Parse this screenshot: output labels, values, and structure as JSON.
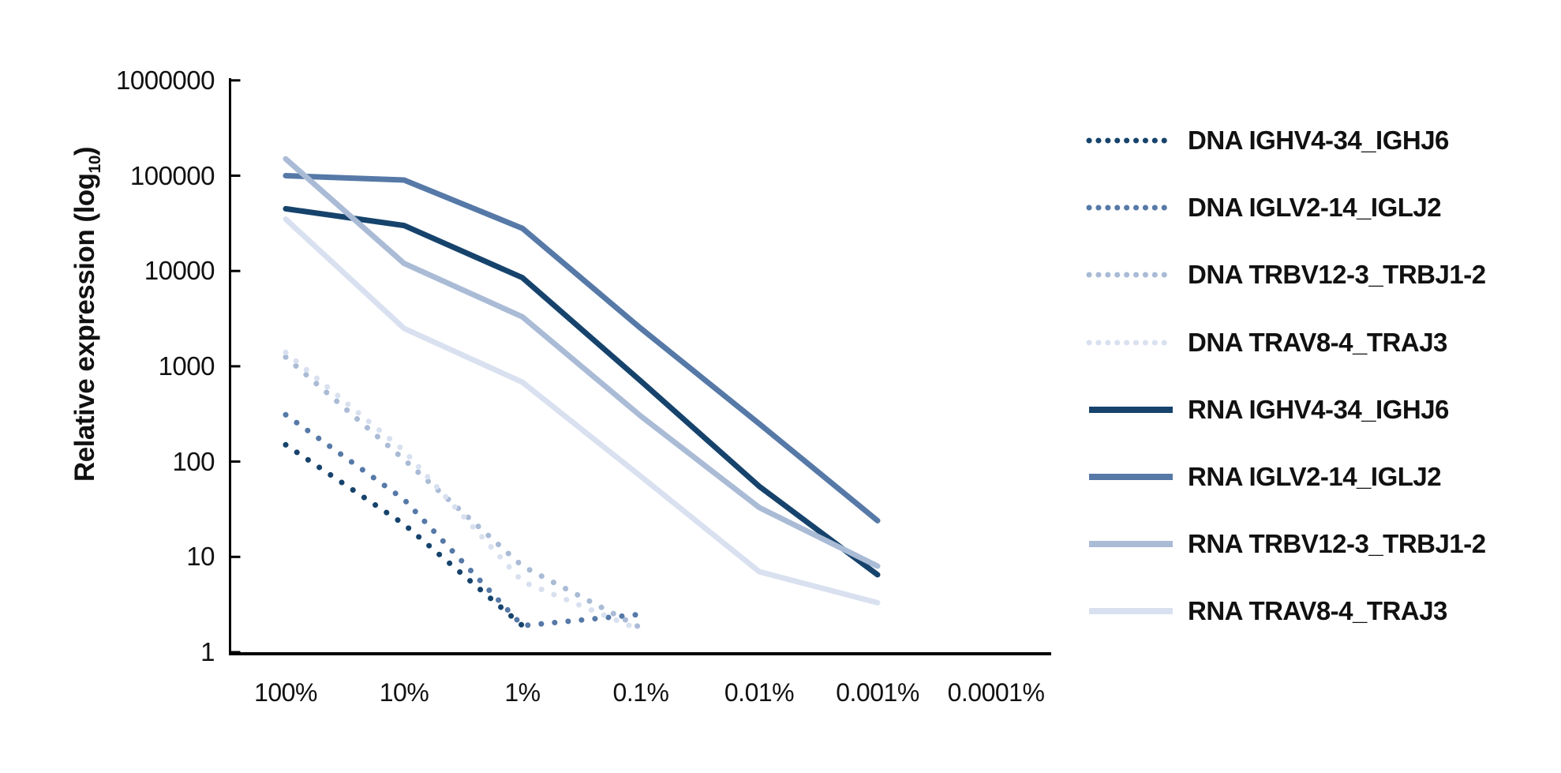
{
  "chart_data": {
    "type": "line",
    "title": "",
    "x_axis": {
      "label": "",
      "categories": [
        "100%",
        "10%",
        "1%",
        "0.1%",
        "0.01%",
        "0.001%",
        "0.0001%"
      ]
    },
    "y_axis": {
      "title": "Relative expression (log10)",
      "title_parts": {
        "prefix": "Relative expression (log",
        "subscript": "10",
        "suffix": ")"
      },
      "scale": "log10",
      "min": 1,
      "max": 1000000,
      "tick_labels": [
        "1000000",
        "100000",
        "10000",
        "1000",
        "100",
        "10",
        "1"
      ]
    },
    "grid": "off",
    "legend_position": "right",
    "axis_color": "#000000",
    "text_color": "#111111",
    "series": [
      {
        "name": "DNA IGHV4-34_IGHJ6",
        "group": "DNA",
        "line_style": "dotted",
        "color": "#16436C",
        "values": [
          150,
          22,
          1.9,
          null,
          null,
          null,
          null
        ]
      },
      {
        "name": "DNA IGLV2-14_IGLJ2",
        "group": "DNA",
        "line_style": "dotted",
        "color": "#5679A7",
        "values": [
          310,
          40,
          1.9,
          2.5,
          null,
          null,
          null
        ]
      },
      {
        "name": "DNA TRBV12-3_TRBJ1-2",
        "group": "DNA",
        "line_style": "dotted",
        "color": "#AABBD6",
        "values": [
          1250,
          105,
          8,
          1.8,
          null,
          null,
          null
        ]
      },
      {
        "name": "DNA TRAV8-4_TRAJ3",
        "group": "DNA",
        "line_style": "dotted",
        "color": "#D9E1F0",
        "values": [
          1400,
          130,
          5.5,
          1.7,
          null,
          null,
          null
        ]
      },
      {
        "name": "RNA IGHV4-34_IGHJ6",
        "group": "RNA",
        "line_style": "solid",
        "color": "#16436C",
        "values": [
          45000,
          30000,
          8500,
          700,
          55,
          6.5,
          null
        ]
      },
      {
        "name": "RNA IGLV2-14_IGLJ2",
        "group": "RNA",
        "line_style": "solid",
        "color": "#5679A7",
        "values": [
          100000,
          90000,
          28000,
          2500,
          250,
          24,
          null
        ]
      },
      {
        "name": "RNA TRBV12-3_TRBJ1-2",
        "group": "RNA",
        "line_style": "solid",
        "color": "#AABBD6",
        "values": [
          150000,
          12000,
          3300,
          300,
          33,
          8,
          null
        ]
      },
      {
        "name": "RNA TRAV8-4_TRAJ3",
        "group": "RNA",
        "line_style": "solid",
        "color": "#D9E1F0",
        "values": [
          35000,
          2500,
          680,
          70,
          7,
          3.3,
          null
        ]
      }
    ]
  }
}
